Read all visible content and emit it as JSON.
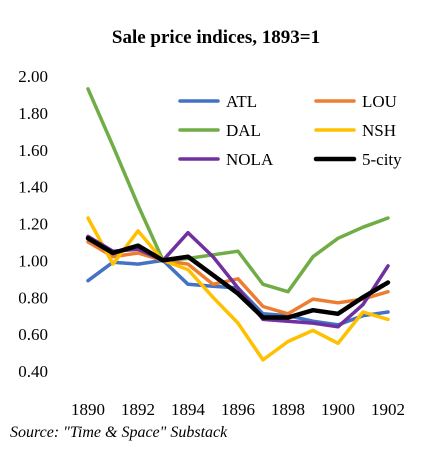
{
  "chart_data": {
    "type": "line",
    "title": "Sale price indices, 1893=1",
    "source": "Source: \"Time & Space\" Substack",
    "x": [
      1890,
      1891,
      1892,
      1893,
      1894,
      1895,
      1896,
      1897,
      1898,
      1899,
      1900,
      1901,
      1902
    ],
    "x_tick_labels": [
      "1890",
      "1892",
      "1894",
      "1896",
      "1898",
      "1900",
      "1902"
    ],
    "x_tick_values": [
      1890,
      1892,
      1894,
      1896,
      1898,
      1900,
      1902
    ],
    "y_tick_labels": [
      "0.40",
      "0.60",
      "0.80",
      "1.00",
      "1.20",
      "1.40",
      "1.60",
      "1.80",
      "2.00"
    ],
    "y_tick_values": [
      0.4,
      0.6,
      0.8,
      1.0,
      1.2,
      1.4,
      1.6,
      1.8,
      2.0
    ],
    "xlim": [
      1890,
      1902
    ],
    "ylim": [
      0.4,
      2.0
    ],
    "grid": false,
    "legend_position": "top-right",
    "series": [
      {
        "name": "ATL",
        "color": "#4472C4",
        "values": [
          0.89,
          0.99,
          0.98,
          1.0,
          0.87,
          0.86,
          0.85,
          0.71,
          0.7,
          0.67,
          0.65,
          0.7,
          0.72
        ]
      },
      {
        "name": "LOU",
        "color": "#ED7D31",
        "values": [
          1.1,
          1.02,
          1.04,
          1.0,
          0.98,
          0.87,
          0.9,
          0.75,
          0.71,
          0.79,
          0.77,
          0.79,
          0.83
        ]
      },
      {
        "name": "DAL",
        "color": "#70AD47",
        "values": [
          1.93,
          1.62,
          1.3,
          1.0,
          1.01,
          1.03,
          1.05,
          0.87,
          0.83,
          1.02,
          1.12,
          1.18,
          1.23
        ]
      },
      {
        "name": "NSH",
        "color": "#FFC000",
        "values": [
          1.23,
          0.98,
          1.16,
          1.0,
          0.95,
          0.8,
          0.66,
          0.46,
          0.56,
          0.62,
          0.55,
          0.72,
          0.68
        ]
      },
      {
        "name": "NOLA",
        "color": "#7030A0",
        "values": [
          1.13,
          1.05,
          1.06,
          1.0,
          1.15,
          1.02,
          0.85,
          0.68,
          0.67,
          0.66,
          0.64,
          0.76,
          0.97
        ]
      },
      {
        "name": "5-city",
        "color": "#000000",
        "values": [
          1.12,
          1.04,
          1.08,
          1.0,
          1.02,
          0.92,
          0.82,
          0.69,
          0.69,
          0.73,
          0.71,
          0.8,
          0.88
        ]
      }
    ]
  }
}
